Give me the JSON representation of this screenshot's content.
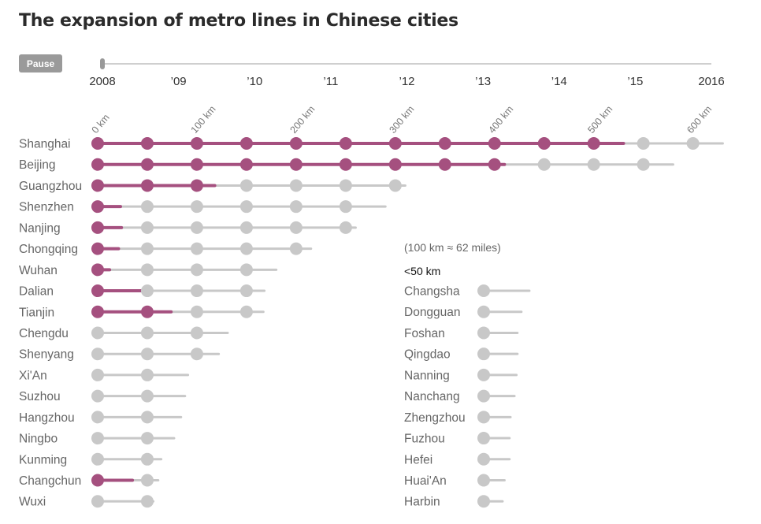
{
  "title": "The expansion of metro lines in Chinese cities",
  "controls": {
    "pause_label": "Pause"
  },
  "timeline": {
    "years": [
      2008,
      2009,
      2010,
      2011,
      2012,
      2013,
      2014,
      2015,
      2016
    ],
    "labels": [
      "2008",
      "’09",
      "’10",
      "’11",
      "’12",
      "’13",
      "’14",
      "’15",
      "2016"
    ],
    "current_year": 2008
  },
  "chart_data": {
    "type": "dot-line",
    "title": "The expansion of metro lines in Chinese cities",
    "note": "(100 km ≈ 62 miles)",
    "small_section_label": "<50 km",
    "axis_labels": [
      {
        "km": 0,
        "label": "0 km"
      },
      {
        "km": 100,
        "label": "100 km"
      },
      {
        "km": 200,
        "label": "200 km"
      },
      {
        "km": 300,
        "label": "300 km"
      },
      {
        "km": 400,
        "label": "400 km"
      },
      {
        "km": 500,
        "label": "500 km"
      },
      {
        "km": 600,
        "label": "600 km"
      }
    ],
    "dot_step_km": 50,
    "colors": {
      "highlight": "#a5507f",
      "base": "#c8c8c8"
    },
    "cities": [
      {
        "name": "Shanghai",
        "total_km": 630,
        "highlight_km": 530
      },
      {
        "name": "Beijing",
        "total_km": 580,
        "highlight_km": 410
      },
      {
        "name": "Guangzhou",
        "total_km": 310,
        "highlight_km": 118
      },
      {
        "name": "Shenzhen",
        "total_km": 290,
        "highlight_km": 23
      },
      {
        "name": "Nanjing",
        "total_km": 260,
        "highlight_km": 24
      },
      {
        "name": "Chongqing",
        "total_km": 215,
        "highlight_km": 21
      },
      {
        "name": "Wuhan",
        "total_km": 180,
        "highlight_km": 12
      },
      {
        "name": "Dalian",
        "total_km": 168,
        "highlight_km": 44
      },
      {
        "name": "Tianjin",
        "total_km": 167,
        "highlight_km": 74
      },
      {
        "name": "Chengdu",
        "total_km": 131,
        "highlight_km": 0
      },
      {
        "name": "Shenyang",
        "total_km": 122,
        "highlight_km": 0
      },
      {
        "name": "Xi'An",
        "total_km": 91,
        "highlight_km": 0
      },
      {
        "name": "Suzhou",
        "total_km": 88,
        "highlight_km": 0
      },
      {
        "name": "Hangzhou",
        "total_km": 84,
        "highlight_km": 0
      },
      {
        "name": "Ningbo",
        "total_km": 77,
        "highlight_km": 0
      },
      {
        "name": "Kunming",
        "total_km": 64,
        "highlight_km": 0
      },
      {
        "name": "Changchun",
        "total_km": 61,
        "highlight_km": 35
      },
      {
        "name": "Wuxi",
        "total_km": 56,
        "highlight_km": 0
      }
    ],
    "small_cities": [
      {
        "name": "Changsha",
        "total_km": 46
      },
      {
        "name": "Dongguan",
        "total_km": 38
      },
      {
        "name": "Foshan",
        "total_km": 34
      },
      {
        "name": "Qingdao",
        "total_km": 34
      },
      {
        "name": "Nanning",
        "total_km": 33
      },
      {
        "name": "Nanchang",
        "total_km": 31
      },
      {
        "name": "Zhengzhou",
        "total_km": 27
      },
      {
        "name": "Fuzhou",
        "total_km": 26
      },
      {
        "name": "Hefei",
        "total_km": 26
      },
      {
        "name": "Huai'An",
        "total_km": 21
      },
      {
        "name": "Harbin",
        "total_km": 19
      }
    ]
  }
}
